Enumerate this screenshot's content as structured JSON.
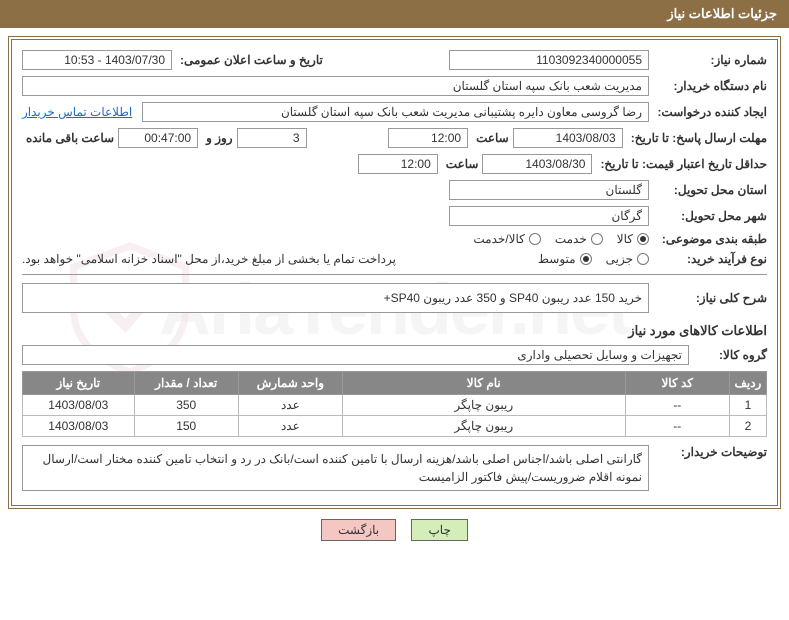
{
  "header_title": "جزئیات اطلاعات نیاز",
  "watermark_text": "AriaTender.net",
  "fields": {
    "need_no_label": "شماره نیاز:",
    "need_no": "1103092340000055",
    "announce_label": "تاریخ و ساعت اعلان عمومی:",
    "announce": "1403/07/30 - 10:53",
    "buyer_label": "نام دستگاه خریدار:",
    "buyer": "مدیریت شعب بانک سپه استان گلستان",
    "requester_label": "ایجاد کننده درخواست:",
    "requester": "رضا گروسی معاون دایره پشتیبانی مدیریت شعب بانک سپه استان گلستان",
    "contact_link": "اطلاعات تماس خریدار",
    "deadline_to_label": "مهلت ارسال پاسخ: تا تاریخ:",
    "deadline_date": "1403/08/03",
    "time_label": "ساعت",
    "deadline_time": "12:00",
    "days_label": "روز و",
    "remain_days": "3",
    "remain_time": "00:47:00",
    "remain_suffix": "ساعت باقی مانده",
    "validity_to_label": "حداقل تاریخ اعتبار قیمت: تا تاریخ:",
    "validity_date": "1403/08/30",
    "validity_time": "12:00",
    "state_label": "استان محل تحویل:",
    "state": "گلستان",
    "city_label": "شهر محل تحویل:",
    "city": "گرگان",
    "category_label": "طبقه بندی موضوعی:",
    "cat_goods": "کالا",
    "cat_service": "خدمت",
    "cat_both": "کالا/خدمت",
    "proc_type_label": "نوع فرآیند خرید:",
    "proc_small": "جزیی",
    "proc_medium": "متوسط",
    "proc_note": "پرداخت تمام یا بخشی از مبلغ خرید،از محل \"اسناد خزانه اسلامی\" خواهد بود.",
    "summary_label": "شرح کلی نیاز:",
    "summary": "خرید 150 عدد ریبون SP40 و 350 عدد ریبون SP40+",
    "items_info_title": "اطلاعات کالاهای مورد نیاز",
    "group_label": "گروه کالا:",
    "group": "تجهیزات و وسایل تحصیلی واداری",
    "buyer_notes_label": "توضیحات خریدار:",
    "buyer_notes": "گارانتی اصلی باشد/اجناس اصلی باشد/هزینه ارسال با تامین کننده است/بانک در رد و انتخاب تامین کننده مختار است/ارسال نمونه اقلام ضروریست/پیش فاکتور الزامیست"
  },
  "table": {
    "columns": [
      "ردیف",
      "کد کالا",
      "نام کالا",
      "واحد شمارش",
      "تعداد / مقدار",
      "تاریخ نیاز"
    ],
    "rows": [
      [
        "1",
        "--",
        "ریبون چاپگر",
        "عدد",
        "350",
        "1403/08/03"
      ],
      [
        "2",
        "--",
        "ریبون چاپگر",
        "عدد",
        "150",
        "1403/08/03"
      ]
    ]
  },
  "buttons": {
    "print": "چاپ",
    "back": "بازگشت"
  }
}
